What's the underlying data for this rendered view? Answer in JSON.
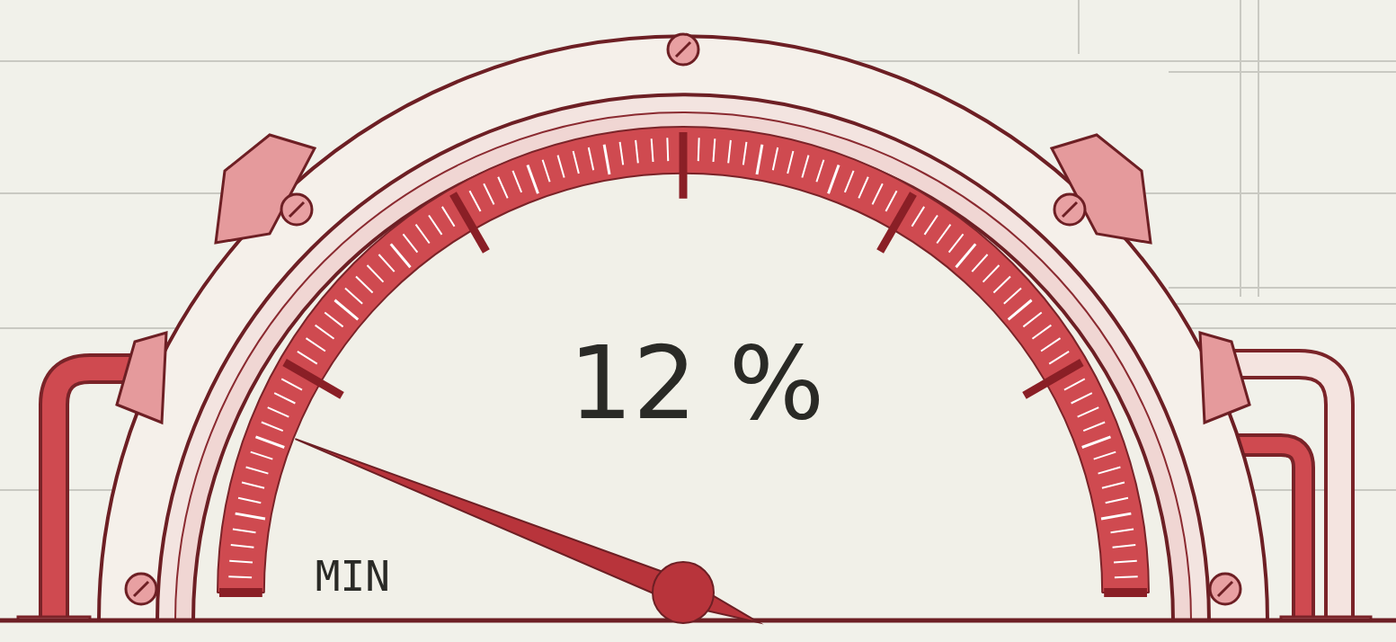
{
  "chart_data": {
    "type": "gauge",
    "values": [
      12
    ],
    "value_labels": [
      "12 %"
    ],
    "ylim": [
      0,
      100
    ],
    "yticks": [
      {
        "value": 0,
        "label": "MIN"
      }
    ],
    "color": "#cf4a50"
  }
}
